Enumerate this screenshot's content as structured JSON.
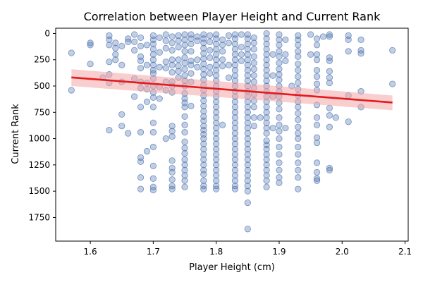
{
  "chart_data": {
    "type": "scatter",
    "title": "Correlation between Player Height and Current Rank",
    "xlabel": "Player Height (cm)",
    "ylabel": "Current Rank",
    "xlim": [
      1.545,
      2.105
    ],
    "ylim": [
      -50,
      1975
    ],
    "y_inverted": true,
    "x_ticks": [
      1.6,
      1.7,
      1.8,
      1.9,
      2.0,
      2.1
    ],
    "x_tick_labels": [
      "1.6",
      "1.7",
      "1.8",
      "1.9",
      "2.0",
      "2.1"
    ],
    "y_ticks": [
      0,
      250,
      500,
      750,
      1000,
      1250,
      1500,
      1750
    ],
    "y_tick_labels": [
      "0",
      "250",
      "500",
      "750",
      "1000",
      "1250",
      "1500",
      "1750"
    ],
    "grid": false,
    "point_color": "#4c72b0",
    "regression": {
      "color": "#e41a1c",
      "band_color": "#f4a6a6",
      "x": [
        1.57,
        2.08
      ],
      "y": [
        418,
        657
      ],
      "ci_low": [
        340,
        590
      ],
      "ci_high": [
        500,
        730
      ]
    },
    "x_heights": [
      1.57,
      1.6,
      1.62,
      1.63,
      1.64,
      1.65,
      1.66,
      1.67,
      1.68,
      1.69,
      1.7,
      1.71,
      1.72,
      1.73,
      1.74,
      1.75,
      1.76,
      1.77,
      1.78,
      1.79,
      1.8,
      1.81,
      1.82,
      1.83,
      1.84,
      1.85,
      1.86,
      1.87,
      1.88,
      1.89,
      1.9,
      1.91,
      1.92,
      1.93,
      1.95,
      1.96,
      1.97,
      1.98,
      1.99,
      2.01,
      2.03,
      2.08
    ],
    "points": [
      {
        "h": 1.57,
        "ranks": [
          185,
          540
        ]
      },
      {
        "h": 1.6,
        "ranks": [
          90,
          110,
          290
        ]
      },
      {
        "h": 1.62,
        "ranks": [
          420
        ]
      },
      {
        "h": 1.63,
        "ranks": [
          20,
          60,
          110,
          270,
          390,
          470,
          920
        ]
      },
      {
        "h": 1.64,
        "ranks": [
          90,
          140,
          200,
          250
        ]
      },
      {
        "h": 1.65,
        "ranks": [
          120,
          300,
          460,
          770,
          880
        ]
      },
      {
        "h": 1.66,
        "ranks": [
          50,
          80,
          950
        ]
      },
      {
        "h": 1.67,
        "ranks": [
          10,
          80,
          160,
          430,
          600
        ]
      },
      {
        "h": 1.68,
        "ranks": [
          40,
          120,
          220,
          260,
          330,
          460,
          520,
          700,
          940,
          1180,
          1220,
          1370,
          1480
        ]
      },
      {
        "h": 1.69,
        "ranks": [
          110,
          300,
          470,
          530,
          650,
          1120
        ]
      },
      {
        "h": 1.7,
        "ranks": [
          20,
          60,
          100,
          150,
          200,
          250,
          300,
          350,
          380,
          430,
          500,
          560,
          610,
          700,
          850,
          940,
          1080,
          1260,
          1380,
          1460,
          1490
        ]
      },
      {
        "h": 1.71,
        "ranks": [
          40,
          180,
          320,
          510,
          620
        ]
      },
      {
        "h": 1.72,
        "ranks": [
          10,
          70,
          140,
          270,
          330,
          460,
          540,
          1000
        ]
      },
      {
        "h": 1.73,
        "ranks": [
          30,
          90,
          160,
          250,
          300,
          370,
          460,
          500,
          560,
          880,
          930,
          980,
          1210,
          1280,
          1320,
          1390,
          1450,
          1480
        ]
      },
      {
        "h": 1.74,
        "ranks": [
          20,
          70,
          130,
          250,
          310,
          360,
          420
        ]
      },
      {
        "h": 1.75,
        "ranks": [
          10,
          60,
          110,
          170,
          230,
          280,
          340,
          400,
          450,
          500,
          570,
          620,
          660,
          700,
          790,
          870,
          940,
          1030,
          1090,
          1140,
          1200,
          1250,
          1300,
          1350,
          1400,
          1460
        ]
      },
      {
        "h": 1.76,
        "ranks": [
          10,
          50,
          100,
          170,
          260,
          300,
          380,
          460,
          690
        ]
      },
      {
        "h": 1.77,
        "ranks": [
          30,
          70,
          250,
          320
        ]
      },
      {
        "h": 1.78,
        "ranks": [
          10,
          50,
          90,
          140,
          190,
          240,
          290,
          340,
          390,
          440,
          490,
          540,
          590,
          640,
          690,
          740,
          790,
          830,
          880,
          920,
          960,
          1000,
          1050,
          1100,
          1150,
          1200,
          1250,
          1300,
          1340,
          1400,
          1450,
          1480
        ]
      },
      {
        "h": 1.79,
        "ranks": [
          20,
          80,
          160,
          230,
          320,
          380
        ]
      },
      {
        "h": 1.8,
        "ranks": [
          10,
          50,
          100,
          150,
          200,
          250,
          300,
          350,
          400,
          450,
          500,
          550,
          600,
          650,
          700,
          750,
          800,
          850,
          900,
          950,
          1000,
          1050,
          1100,
          1150,
          1200,
          1250,
          1300,
          1350,
          1400,
          1450,
          1480
        ]
      },
      {
        "h": 1.81,
        "ranks": [
          60,
          110,
          170,
          250,
          310,
          870
        ]
      },
      {
        "h": 1.82,
        "ranks": [
          20,
          90,
          300,
          420
        ]
      },
      {
        "h": 1.83,
        "ranks": [
          10,
          50,
          100,
          150,
          200,
          250,
          300,
          350,
          400,
          450,
          500,
          550,
          600,
          650,
          700,
          750,
          800,
          850,
          900,
          950,
          1000,
          1050,
          1100,
          1150,
          1200,
          1250,
          1300,
          1350,
          1400,
          1450,
          1480
        ]
      },
      {
        "h": 1.84,
        "ranks": [
          10,
          130,
          200,
          260
        ]
      },
      {
        "h": 1.85,
        "ranks": [
          10,
          50,
          100,
          150,
          200,
          250,
          300,
          350,
          400,
          450,
          500,
          550,
          600,
          650,
          700,
          750,
          800,
          850,
          900,
          950,
          1000,
          1050,
          1100,
          1150,
          1200,
          1250,
          1300,
          1350,
          1400,
          1450,
          1500,
          1610,
          1860
        ]
      },
      {
        "h": 1.86,
        "ranks": [
          40,
          90,
          150,
          220,
          280,
          340,
          400,
          460,
          520,
          580,
          640,
          700,
          800,
          880
        ]
      },
      {
        "h": 1.87,
        "ranks": [
          800
        ]
      },
      {
        "h": 1.88,
        "ranks": [
          0,
          50,
          100,
          150,
          200,
          250,
          300,
          350,
          400,
          450,
          500,
          550,
          600,
          650,
          700,
          750,
          800,
          850,
          900,
          950,
          1020,
          1060,
          1100,
          1150,
          1200,
          1250,
          1300,
          1350,
          1400,
          1460
        ]
      },
      {
        "h": 1.89,
        "ranks": [
          200,
          400,
          600,
          900
        ]
      },
      {
        "h": 1.9,
        "ranks": [
          10,
          60,
          110,
          170,
          220,
          280,
          340,
          390,
          440,
          500,
          550,
          600,
          660,
          720,
          800,
          870,
          930,
          1000,
          1080,
          1150,
          1230,
          1300,
          1370,
          1420
        ]
      },
      {
        "h": 1.91,
        "ranks": [
          60,
          200,
          260,
          900
        ]
      },
      {
        "h": 1.92,
        "ranks": [
          500
        ]
      },
      {
        "h": 1.93,
        "ranks": [
          20,
          60,
          110,
          170,
          220,
          290,
          350,
          410,
          470,
          530,
          590,
          650,
          700,
          760,
          820,
          890,
          950,
          1000,
          1080,
          1150,
          1230,
          1300,
          1370,
          1480
        ]
      },
      {
        "h": 1.95,
        "ranks": [
          10,
          200
        ]
      },
      {
        "h": 1.96,
        "ranks": [
          50,
          110,
          200,
          250,
          350,
          410,
          480,
          540,
          680,
          800,
          870,
          990,
          1040,
          1230,
          1320,
          1380,
          1400
        ]
      },
      {
        "h": 1.97,
        "ranks": [
          30
        ]
      },
      {
        "h": 1.98,
        "ranks": [
          10,
          30,
          230,
          260,
          360,
          420,
          470,
          710,
          780,
          890,
          1280,
          1300
        ]
      },
      {
        "h": 1.99,
        "ranks": [
          800
        ]
      },
      {
        "h": 2.01,
        "ranks": [
          20,
          60,
          170,
          590,
          840
        ]
      },
      {
        "h": 2.03,
        "ranks": [
          60,
          160,
          190,
          550,
          700
        ]
      },
      {
        "h": 2.08,
        "ranks": [
          160,
          480
        ]
      }
    ]
  }
}
